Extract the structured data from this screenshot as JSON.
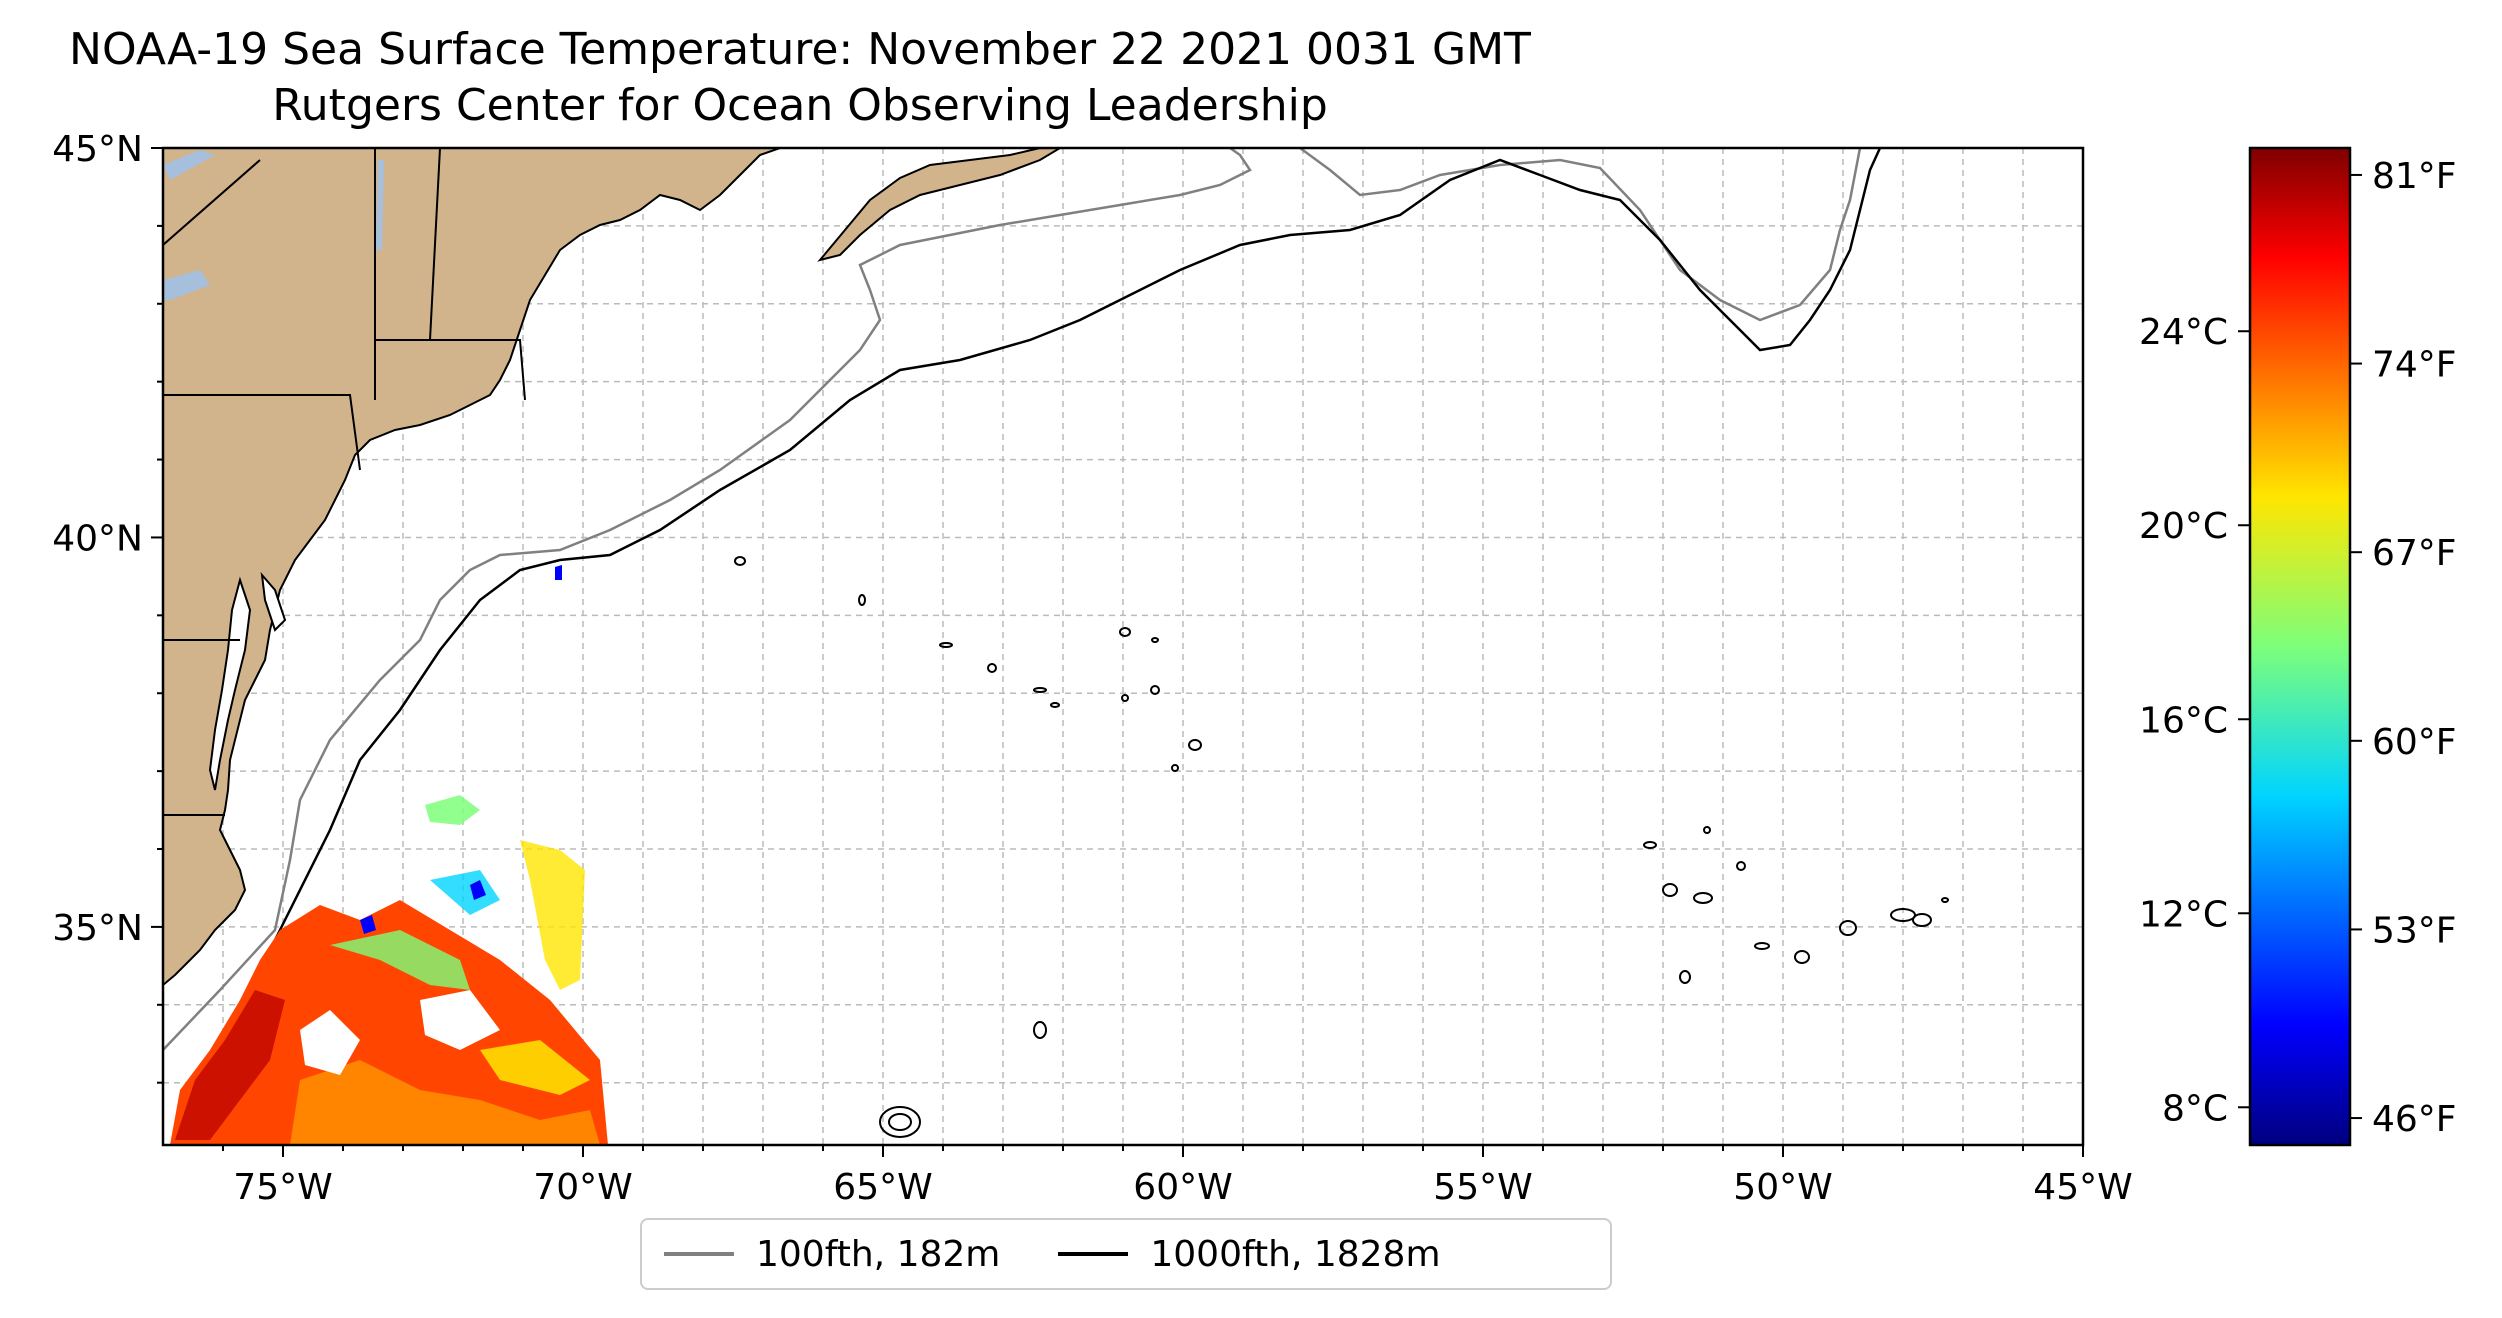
{
  "title": "NOAA-19 Sea Surface Temperature: November 22 2021 0031 GMT",
  "subtitle": "Rutgers Center for Ocean Observing Leadership",
  "map": {
    "lon_labels": [
      "75°W",
      "70°W",
      "65°W",
      "60°W",
      "55°W",
      "50°W",
      "45°W"
    ],
    "lat_labels": [
      "45°N",
      "40°N",
      "35°N"
    ],
    "extent": {
      "lon": [
        -77,
        -45
      ],
      "lat": [
        32.2,
        45
      ]
    },
    "gridlines": true,
    "land_color": "#d2b48c",
    "water_color": "#a5bfdd"
  },
  "legend": {
    "position": "bottom-center",
    "items": [
      {
        "label": "100fth, 182m",
        "color": "#808080"
      },
      {
        "label": "1000fth, 1828m",
        "color": "#000000"
      }
    ]
  },
  "colorbar": {
    "colormap": "jet",
    "celsius_labels": [
      "24°C",
      "20°C",
      "16°C",
      "12°C",
      "8°C"
    ],
    "celsius_values": [
      24,
      20,
      16,
      12,
      8
    ],
    "fahrenheit_labels": [
      "81°F",
      "74°F",
      "67°F",
      "60°F",
      "53°F",
      "46°F"
    ],
    "fahrenheit_values": [
      81,
      74,
      67,
      60,
      53,
      46
    ],
    "range_f": [
      45,
      82
    ]
  }
}
